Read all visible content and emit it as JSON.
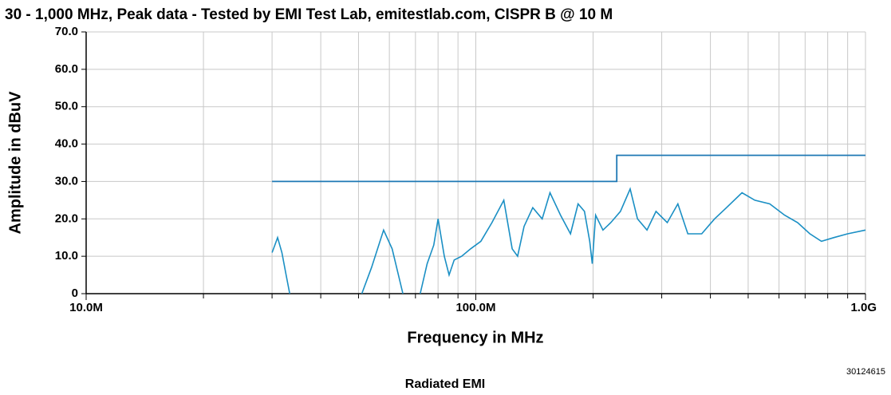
{
  "chart_data": {
    "type": "line",
    "title": "30 - 1,000 MHz, Peak data - Tested by EMI Test Lab, emitestlab.com, CISPR B @ 10 M",
    "x_label": "Frequency in MHz",
    "y_label": "Amplitude  in dBuV",
    "figure_code": "30124615",
    "caption": "Radiated EMI",
    "x_log": true,
    "grid": true,
    "xlim": [
      10,
      1000
    ],
    "xticks": [
      {
        "value": 10,
        "label": "10.0M"
      },
      {
        "value": 100,
        "label": "100.0M"
      },
      {
        "value": 1000,
        "label": "1.0G"
      }
    ],
    "ylim": [
      0,
      70
    ],
    "yticks": [
      0,
      {
        "value": 10,
        "label": "10.0"
      },
      {
        "value": 20,
        "label": "20.0"
      },
      {
        "value": 30,
        "label": "30.0"
      },
      {
        "value": 40,
        "label": "40.0"
      },
      {
        "value": 50,
        "label": "50.0"
      },
      {
        "value": 60,
        "label": "60.0"
      },
      {
        "value": 70,
        "label": "70.0"
      }
    ],
    "series": [
      {
        "color": "#1e78b4",
        "x": [
          30,
          230,
          230,
          1000
        ],
        "values": [
          30,
          30,
          37,
          37
        ]
      },
      {
        "color": "#1a8fc4",
        "x": [
          30,
          30.5,
          31,
          31.8,
          32.6,
          33.3,
          40,
          51,
          54,
          58,
          61,
          65,
          70,
          72,
          75,
          78,
          80,
          83,
          85.4,
          88,
          92,
          97,
          103,
          110,
          118,
          124,
          128,
          133,
          140,
          148,
          155,
          165,
          175,
          183,
          190,
          196,
          199,
          203,
          212,
          222,
          235,
          249,
          260,
          275,
          290,
          310,
          330,
          350,
          380,
          410,
          440,
          482,
          520,
          568,
          620,
          670,
          720,
          771,
          830,
          900,
          1000
        ],
        "values": [
          11,
          13,
          15,
          11,
          5,
          0,
          null,
          0,
          7,
          17,
          12,
          0,
          null,
          0,
          8,
          13,
          20,
          10,
          5,
          9,
          10,
          12,
          14,
          19,
          25,
          12,
          10,
          18,
          23,
          20,
          27,
          21,
          16,
          24,
          22,
          14,
          8,
          21,
          17,
          19,
          22,
          28,
          20,
          17,
          22,
          19,
          24,
          16,
          16,
          20,
          23,
          27,
          25,
          24,
          21,
          19,
          16,
          14,
          15,
          16,
          17
        ]
      }
    ]
  }
}
